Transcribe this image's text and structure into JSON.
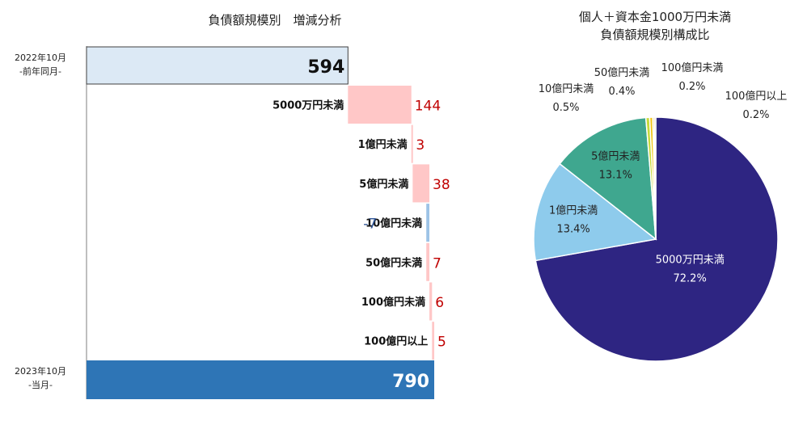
{
  "chart_data": [
    {
      "type": "bar",
      "subtype": "waterfall",
      "title": "負債額規模別　増減分析",
      "start": {
        "label_line1": "2022年10月",
        "label_line2": "-前年同月-",
        "value": 594,
        "color": "#dce9f5"
      },
      "end": {
        "label_line1": "2023年10月",
        "label_line2": "-当月-",
        "value": 790,
        "color": "#2e75b6"
      },
      "steps": [
        {
          "category": "5000万円未満",
          "value": 144,
          "value_label": "144"
        },
        {
          "category": "1億円未満",
          "value": 3,
          "value_label": "3"
        },
        {
          "category": "5億円未満",
          "value": 38,
          "value_label": "38"
        },
        {
          "category": "10億円未満",
          "value": -7,
          "value_label": "-7"
        },
        {
          "category": "50億円未満",
          "value": 7,
          "value_label": "7"
        },
        {
          "category": "100億円未満",
          "value": 6,
          "value_label": "6"
        },
        {
          "category": "100億円以上",
          "value": 5,
          "value_label": "5"
        }
      ],
      "colors": {
        "increase": "#ffc7c7",
        "decrease": "#9dc3e6",
        "increase_text": "#c00000",
        "decrease_text": "#2f5597"
      },
      "xlim": [
        0,
        790
      ]
    },
    {
      "type": "pie",
      "title_line1": "個人＋資本金1000万円未満",
      "title_line2": "負債額規模別構成比",
      "slices": [
        {
          "label": "5000万円未満",
          "value": 72.2,
          "value_label": "72.2%",
          "color": "#2e2582"
        },
        {
          "label": "1億円未満",
          "value": 13.4,
          "value_label": "13.4%",
          "color": "#8ecbec"
        },
        {
          "label": "5億円未満",
          "value": 13.1,
          "value_label": "13.1%",
          "color": "#3fa78f"
        },
        {
          "label": "10億円未満",
          "value": 0.5,
          "value_label": "0.5%",
          "color": "#c6d93a"
        },
        {
          "label": "50億円未満",
          "value": 0.4,
          "value_label": "0.4%",
          "color": "#f2c618"
        },
        {
          "label": "100億円未満",
          "value": 0.2,
          "value_label": "0.2%",
          "color": "#e8b310"
        },
        {
          "label": "100億円以上",
          "value": 0.2,
          "value_label": "0.2%",
          "color": "#b0b0b0"
        }
      ]
    }
  ]
}
